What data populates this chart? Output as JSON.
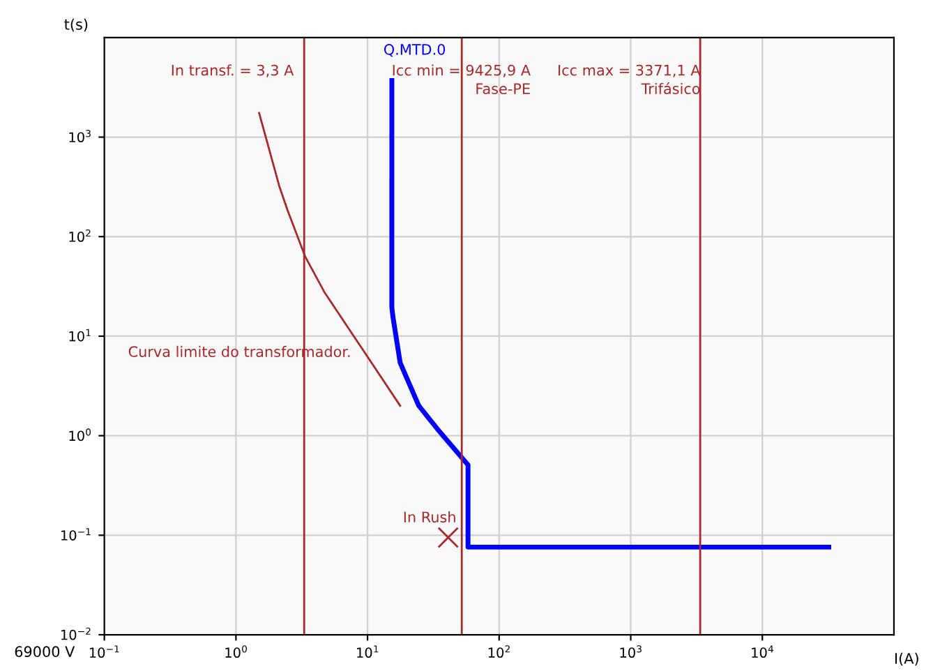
{
  "chart_data": {
    "type": "line",
    "xlabel": "I(A)",
    "ylabel": "t(s)",
    "log": "xy",
    "xlim": [
      0.1,
      100000
    ],
    "ylim": [
      0.01,
      10000
    ],
    "xticks": [
      {
        "value": 0.1,
        "label": "10$^{−1}$"
      },
      {
        "value": 1,
        "label": "10$^{0}$"
      },
      {
        "value": 10,
        "label": "10$^{1}$"
      },
      {
        "value": 100,
        "label": "10$^{2}$"
      },
      {
        "value": 1000,
        "label": "10$^{3}$"
      },
      {
        "value": 10000,
        "label": "10$^{4}$"
      }
    ],
    "yticks": [
      {
        "value": 0.01,
        "label": "10$^{−2}$"
      },
      {
        "value": 0.1,
        "label": "10$^{−1}$"
      },
      {
        "value": 1,
        "label": "10$^{0}$"
      },
      {
        "value": 10,
        "label": "10$^{1}$"
      },
      {
        "value": 100,
        "label": "10$^{2}$"
      },
      {
        "value": 1000,
        "label": "10$^{3}$"
      }
    ],
    "grid": true,
    "legend": false,
    "series": [
      {
        "color": "#a52a2a",
        "x": [
          1.5,
          2.14,
          2.46,
          3.36,
          4.68,
          17.7
        ],
        "values": [
          1750,
          318,
          186,
          63,
          28,
          2.0
        ]
      },
      {
        "color": "#0000ff",
        "x": [
          15.3,
          15.3,
          15.6,
          17.7,
          24.5,
          33.9,
          58,
          58,
          32000
        ],
        "values": [
          3700,
          19.5,
          15.6,
          5.4,
          2.0,
          1.17,
          0.51,
          0.076,
          0.076
        ]
      },
      {
        "type": "scatter",
        "color": "#a52a2a",
        "marker": "cross",
        "x": [
          41
        ],
        "values": [
          0.095
        ]
      }
    ],
    "ref_lines": [
      {
        "axis": "x",
        "value": 3.3,
        "color": "#a52a2a"
      },
      {
        "axis": "x",
        "value": 52,
        "color": "#a52a2a"
      },
      {
        "axis": "x",
        "value": 3371.1,
        "color": "#a52a2a"
      }
    ],
    "annotations": [
      "In transf. = 3,3 A",
      "Icc min = 9425,9 A\nFase-PE",
      "Icc max = 3371,1 A\nTrifásico",
      "Q.MTD.0",
      "Curva limite do transformador.",
      "In Rush",
      "69000 V"
    ]
  }
}
